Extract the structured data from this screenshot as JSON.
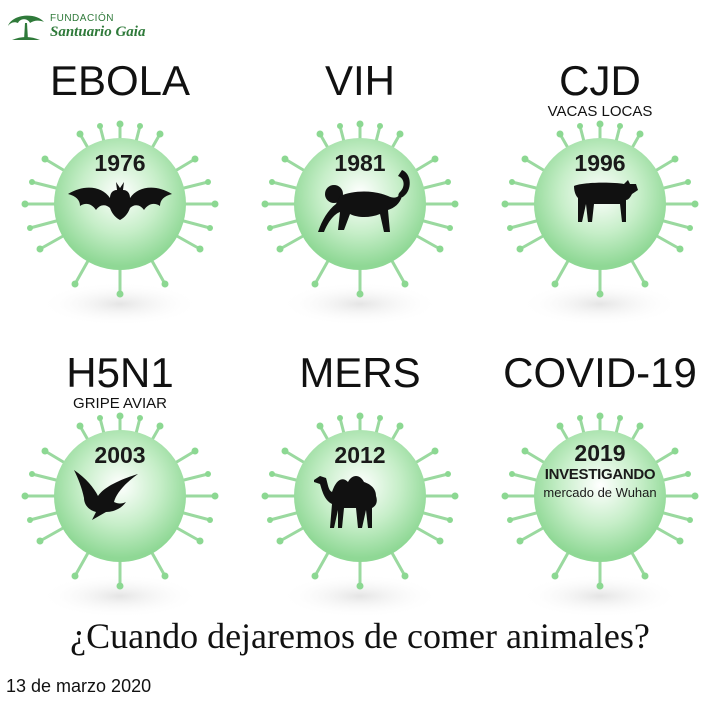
{
  "logo": {
    "top": "FUNDACIÓN",
    "name": "Santuario Gaia"
  },
  "cards": [
    {
      "title": "EBOLA",
      "subtitle": "",
      "year": "1976",
      "animal_icon": "bat-icon"
    },
    {
      "title": "VIH",
      "subtitle": "",
      "year": "1981",
      "animal_icon": "monkey-icon"
    },
    {
      "title": "CJD",
      "subtitle": "VACAS LOCAS",
      "year": "1996",
      "animal_icon": "cow-icon"
    },
    {
      "title": "H5N1",
      "subtitle": "GRIPE AVIAR",
      "year": "2003",
      "animal_icon": "bird-icon"
    },
    {
      "title": "MERS",
      "subtitle": "",
      "year": "2012",
      "animal_icon": "camel-icon"
    },
    {
      "title": "COVID-19",
      "subtitle": "",
      "year": "2019",
      "note_strong": "INVESTIGANDO",
      "note": "mercado de Wuhan"
    }
  ],
  "question": "¿Cuando dejaremos de comer animales?",
  "date": "13 de marzo 2020",
  "colors": {
    "virus": "#a9e3ad",
    "virus_light": "#e6f7e6",
    "spike": "#8cd892",
    "logo_green": "#2f7a3a"
  }
}
